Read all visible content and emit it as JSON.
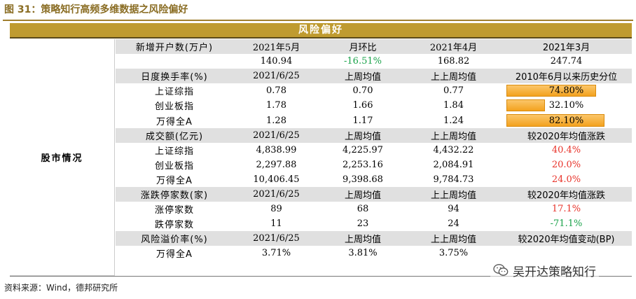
{
  "figure_title": "图 31：策略知行高频多维数据之风险偏好",
  "header": "风险偏好",
  "left_label": "股市情况",
  "colors": {
    "gold": "#bf9b30",
    "shade": "#e0e0e0",
    "red": "#e8332a",
    "green": "#1aa34a",
    "bar": "#f3a21f"
  },
  "rows": [
    {
      "shaded": true,
      "cells": [
        "新增开户数(万户)",
        "2021年5月",
        "月环比",
        "2021年4月",
        "2021年3月"
      ]
    },
    {
      "shaded": false,
      "cells": [
        "",
        "140.94",
        "-16.51%",
        "168.82",
        "247.74"
      ],
      "colors": [
        "",
        "",
        "green",
        "",
        ""
      ]
    },
    {
      "shaded": true,
      "cells": [
        "日度换手率(%)",
        "2021/6/25",
        "上周均值",
        "上上周均值",
        "2010年6月以来历史分位"
      ]
    },
    {
      "shaded": false,
      "cells": [
        "上证综指",
        "0.78",
        "0.70",
        "0.77",
        "74.80%"
      ],
      "bar": 0.748
    },
    {
      "shaded": false,
      "cells": [
        "创业板指",
        "1.78",
        "1.66",
        "1.84",
        "32.10%"
      ],
      "bar": 0.321
    },
    {
      "shaded": false,
      "cells": [
        "万得全A",
        "1.28",
        "1.17",
        "1.24",
        "82.10%"
      ],
      "bar": 0.821
    },
    {
      "shaded": true,
      "cells": [
        "成交额(亿元)",
        "2021/6/25",
        "上周均值",
        "上上周均值",
        "较2020年均值涨跌"
      ]
    },
    {
      "shaded": false,
      "cells": [
        "上证综指",
        "4,838.99",
        "4,225.97",
        "4,432.22",
        "40.4%"
      ],
      "colors": [
        "",
        "",
        "",
        "",
        "red"
      ]
    },
    {
      "shaded": false,
      "cells": [
        "创业板指",
        "2,297.88",
        "2,253.16",
        "2,084.91",
        "20.0%"
      ],
      "colors": [
        "",
        "",
        "",
        "",
        "red"
      ]
    },
    {
      "shaded": false,
      "cells": [
        "万得全A",
        "10,406.45",
        "9,398.68",
        "9,784.73",
        "24.0%"
      ],
      "colors": [
        "",
        "",
        "",
        "",
        "red"
      ]
    },
    {
      "shaded": true,
      "cells": [
        "涨跌停家数(家)",
        "2021/6/25",
        "上周均值",
        "上上周均值",
        "较2020年均值涨跌"
      ]
    },
    {
      "shaded": false,
      "cells": [
        "涨停家数",
        "89",
        "68",
        "94",
        "17.1%"
      ],
      "colors": [
        "",
        "",
        "",
        "",
        "red"
      ]
    },
    {
      "shaded": false,
      "cells": [
        "跌停家数",
        "11",
        "23",
        "24",
        "-71.1%"
      ],
      "colors": [
        "",
        "",
        "",
        "",
        "green"
      ]
    },
    {
      "shaded": true,
      "cells": [
        "风险溢价率(%)",
        "2021/6/25",
        "上周均值",
        "上上周均值",
        "较2020年均值变动(BP)"
      ]
    },
    {
      "shaded": false,
      "cells": [
        "万得全A",
        "3.71%",
        "3.81%",
        "3.75%",
        ""
      ]
    }
  ],
  "source": "资料来源：Wind，德邦研究所",
  "watermark": "吴开达策略知行"
}
